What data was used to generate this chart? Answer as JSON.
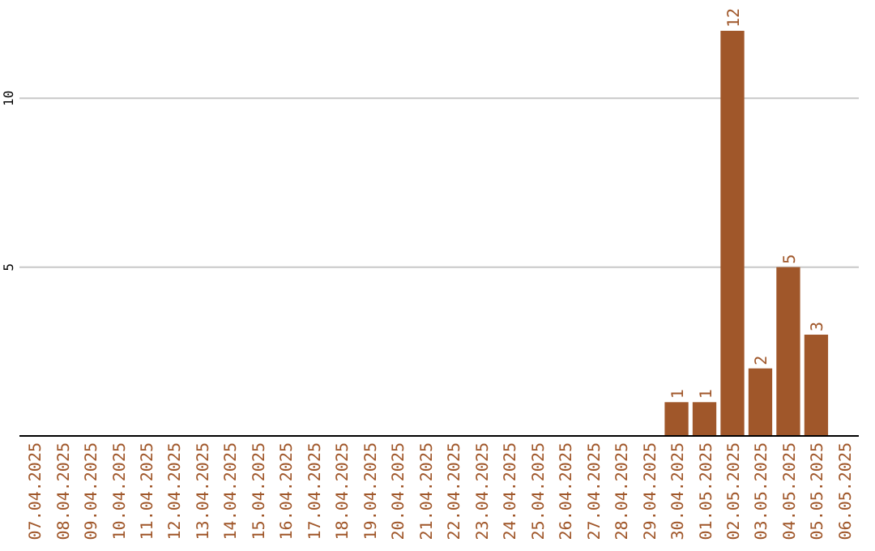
{
  "chart_data": {
    "type": "bar",
    "categories": [
      "07.04.2025",
      "08.04.2025",
      "09.04.2025",
      "10.04.2025",
      "11.04.2025",
      "12.04.2025",
      "13.04.2025",
      "14.04.2025",
      "15.04.2025",
      "16.04.2025",
      "17.04.2025",
      "18.04.2025",
      "19.04.2025",
      "20.04.2025",
      "21.04.2025",
      "22.04.2025",
      "23.04.2025",
      "24.04.2025",
      "25.04.2025",
      "26.04.2025",
      "27.04.2025",
      "28.04.2025",
      "29.04.2025",
      "30.04.2025",
      "01.05.2025",
      "02.05.2025",
      "03.05.2025",
      "04.05.2025",
      "05.05.2025",
      "06.05.2025"
    ],
    "values": [
      0,
      0,
      0,
      0,
      0,
      0,
      0,
      0,
      0,
      0,
      0,
      0,
      0,
      0,
      0,
      0,
      0,
      0,
      0,
      0,
      0,
      0,
      0,
      1,
      1,
      12,
      2,
      5,
      3,
      0
    ],
    "value_labels": [
      null,
      null,
      null,
      null,
      null,
      null,
      null,
      null,
      null,
      null,
      null,
      null,
      null,
      null,
      null,
      null,
      null,
      null,
      null,
      null,
      null,
      null,
      null,
      "1",
      "1",
      "12",
      "2",
      "5",
      "3",
      null
    ],
    "color": "#a0572a",
    "ylim": [
      0,
      12
    ],
    "yticks": [
      5,
      10
    ],
    "grid": "y"
  }
}
